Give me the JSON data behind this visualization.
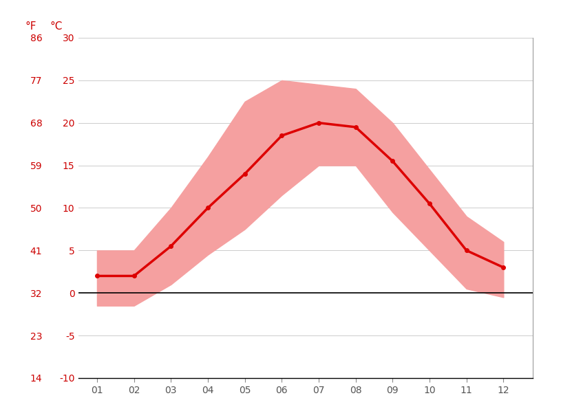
{
  "months": [
    1,
    2,
    3,
    4,
    5,
    6,
    7,
    8,
    9,
    10,
    11,
    12
  ],
  "month_labels": [
    "01",
    "02",
    "03",
    "04",
    "05",
    "06",
    "07",
    "08",
    "09",
    "10",
    "11",
    "12"
  ],
  "mean_temp_c": [
    2.0,
    2.0,
    5.5,
    10.0,
    14.0,
    18.5,
    20.0,
    19.5,
    15.5,
    10.5,
    5.0,
    3.0
  ],
  "max_temp_c": [
    5.0,
    5.0,
    10.0,
    16.0,
    22.5,
    25.0,
    24.5,
    24.0,
    20.0,
    14.5,
    9.0,
    6.0
  ],
  "min_temp_c": [
    -1.5,
    -1.5,
    1.0,
    4.5,
    7.5,
    11.5,
    15.0,
    15.0,
    9.5,
    5.0,
    0.5,
    -0.5
  ],
  "ylim_c": [
    -10,
    30
  ],
  "yticks_c": [
    -10,
    -5,
    0,
    5,
    10,
    15,
    20,
    25,
    30
  ],
  "yticks_f": [
    14,
    23,
    32,
    41,
    50,
    59,
    68,
    77,
    86
  ],
  "line_color": "#dd0000",
  "band_color": "#f5a0a0",
  "bg_color": "#ffffff",
  "grid_color": "#cccccc",
  "label_color": "#cc0000",
  "tick_label_color": "#cc0000",
  "axis_label_F": "°F",
  "axis_label_C": "°C",
  "zero_line_color": "#000000",
  "right_spine_color": "#999999",
  "fig_width": 8.15,
  "fig_height": 6.11,
  "dpi": 100
}
